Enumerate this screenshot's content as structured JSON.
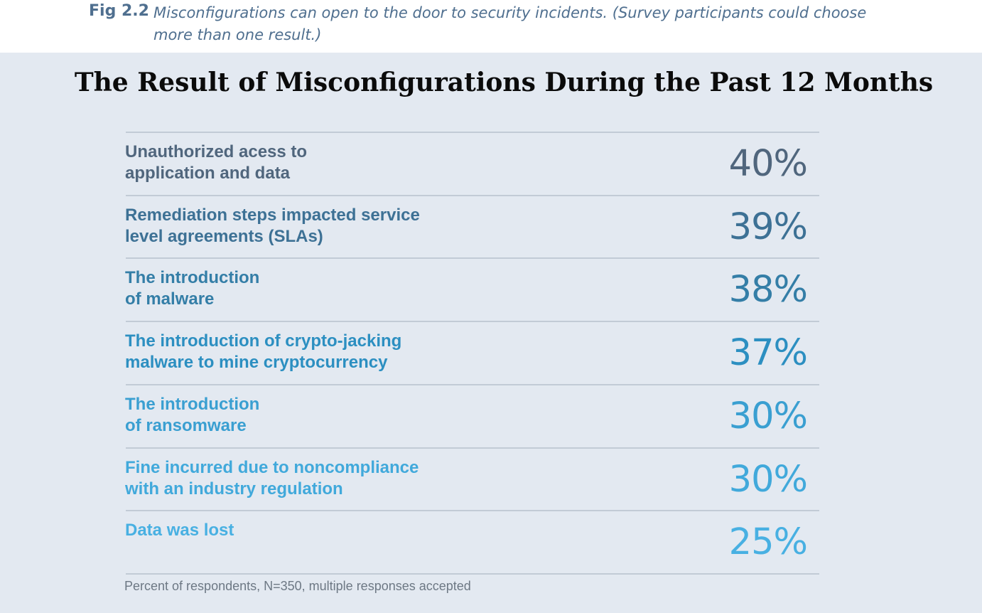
{
  "caption": {
    "label": "Fig 2.2",
    "text": "Misconfigurations can open to the door to security incidents. (Survey participants could choose more than one result.)"
  },
  "chart_data": {
    "type": "table",
    "title": "The Result of Misconfigurations During the Past 12 Months",
    "unit": "%",
    "rows": [
      {
        "label_lines": [
          "Unauthorized acess to",
          "application and data"
        ],
        "value": 40,
        "display": "40%",
        "color": "#50667d"
      },
      {
        "label_lines": [
          "Remediation steps impacted service",
          "level agreements (SLAs)"
        ],
        "value": 39,
        "display": "39%",
        "color": "#3d7195"
      },
      {
        "label_lines": [
          "The introduction",
          "of malware"
        ],
        "value": 38,
        "display": "38%",
        "color": "#347ea7"
      },
      {
        "label_lines": [
          "The introduction of crypto-jacking",
          "malware to mine cryptocurrency"
        ],
        "value": 37,
        "display": "37%",
        "color": "#2c8fc1"
      },
      {
        "label_lines": [
          "The introduction",
          "of ransomware"
        ],
        "value": 30,
        "display": "30%",
        "color": "#3a9fd1"
      },
      {
        "label_lines": [
          "Fine incurred due to noncompliance",
          "with an industry regulation"
        ],
        "value": 30,
        "display": "30%",
        "color": "#41a9db"
      },
      {
        "label_lines": [
          "Data was lost"
        ],
        "value": 25,
        "display": "25%",
        "color": "#48b0e2"
      }
    ],
    "footnote": "Percent of respondents, N=350, multiple responses accepted"
  }
}
